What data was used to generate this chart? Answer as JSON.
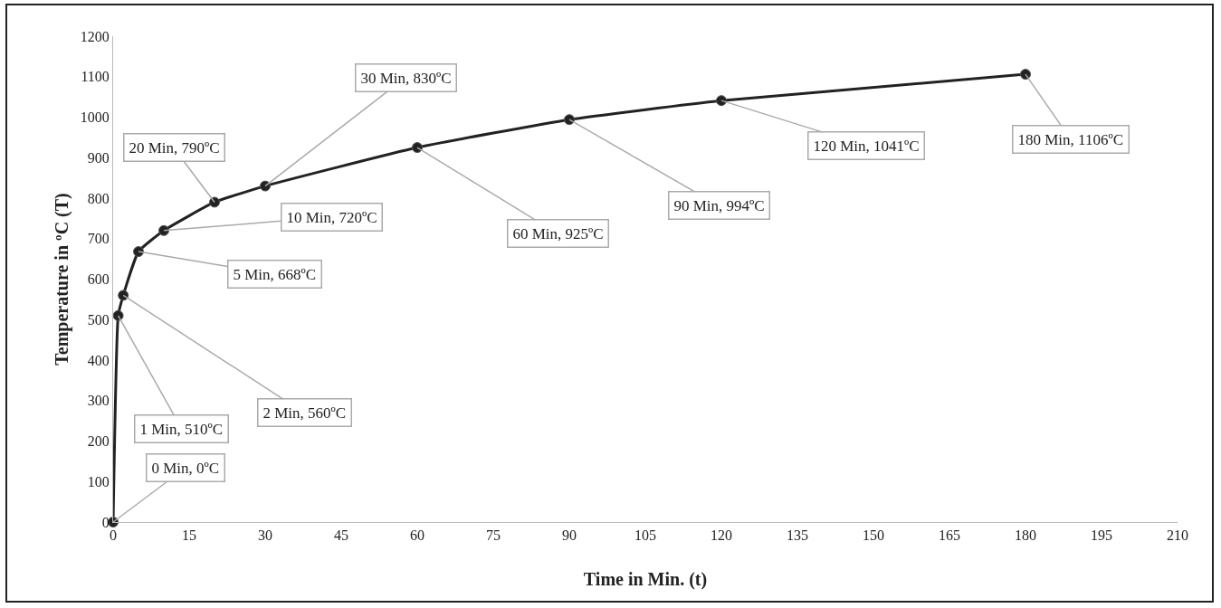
{
  "chart_data": {
    "type": "line",
    "xlabel": "Time in Min. (t)",
    "ylabel": "Temperature in ºC (T)",
    "x": [
      0,
      1,
      2,
      5,
      10,
      20,
      30,
      60,
      90,
      120,
      180
    ],
    "series": [
      {
        "color": "#222222",
        "values": [
          0,
          510,
          560,
          668,
          720,
          790,
          830,
          925,
          994,
          1041,
          1106
        ]
      }
    ],
    "xlim": [
      0,
      210
    ],
    "xticks": [
      0,
      15,
      30,
      45,
      60,
      75,
      90,
      105,
      120,
      135,
      150,
      165,
      180,
      195,
      210
    ],
    "ylim": [
      0,
      1200
    ],
    "yticks": [
      0,
      100,
      200,
      300,
      400,
      500,
      600,
      700,
      800,
      900,
      1000,
      1100,
      1200
    ],
    "grid": false,
    "marker": "circle",
    "line_style": "solid",
    "annotations": [
      {
        "text": "0 Min, 0ºC",
        "x": 0,
        "y": 0
      },
      {
        "text": "1 Min, 510ºC",
        "x": 1,
        "y": 510
      },
      {
        "text": "2 Min, 560ºC",
        "x": 2,
        "y": 560
      },
      {
        "text": "5 Min, 668ºC",
        "x": 5,
        "y": 668
      },
      {
        "text": "10 Min, 720ºC",
        "x": 10,
        "y": 720
      },
      {
        "text": "20 Min, 790ºC",
        "x": 20,
        "y": 790
      },
      {
        "text": "30 Min, 830ºC",
        "x": 30,
        "y": 830
      },
      {
        "text": "60 Min, 925ºC",
        "x": 60,
        "y": 925
      },
      {
        "text": "90 Min, 994ºC",
        "x": 90,
        "y": 994
      },
      {
        "text": "120 Min, 1041ºC",
        "x": 120,
        "y": 1041
      },
      {
        "text": "180 Min, 1106ºC",
        "x": 180,
        "y": 1106
      }
    ]
  }
}
